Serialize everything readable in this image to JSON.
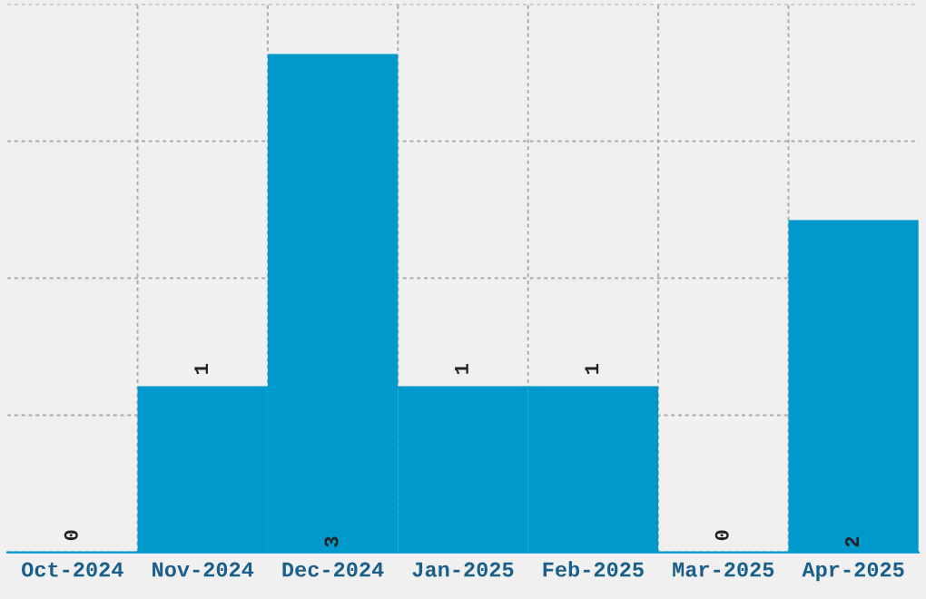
{
  "chart_data": {
    "type": "bar",
    "categories": [
      "Oct-2024",
      "Nov-2024",
      "Dec-2024",
      "Jan-2025",
      "Feb-2025",
      "Mar-2025",
      "Apr-2025"
    ],
    "values": [
      0,
      1,
      3,
      1,
      1,
      0,
      2
    ],
    "color": "#0099cc",
    "ylim": [
      0,
      3.3
    ],
    "yticks": [
      {
        "value": 0,
        "label": null
      },
      {
        "value": 0.825,
        "label": null
      },
      {
        "value": 1.65,
        "label": null
      },
      {
        "value": 2.475,
        "label": null
      },
      {
        "value": 3.3,
        "label": null
      }
    ],
    "grid": true,
    "data_labels": true,
    "tick_labels": "x"
  }
}
